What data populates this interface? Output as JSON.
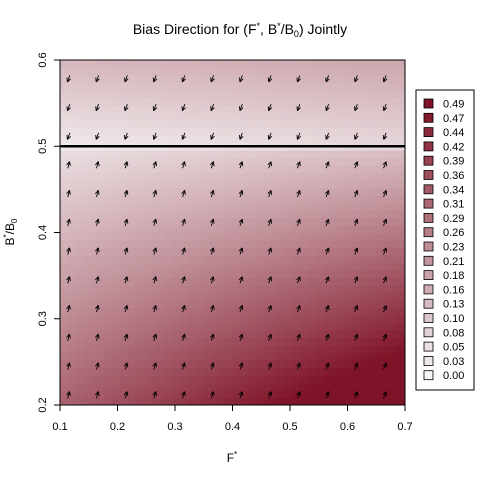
{
  "chart_data": {
    "type": "heatmap",
    "title": {
      "pre": "Bias Direction for (F",
      "sup1": "*",
      "mid": ", B",
      "sup2": "*",
      "slash": "/B",
      "sub": "0",
      "post": ") Jointly"
    },
    "xlabel": {
      "base": "F",
      "sup": "*"
    },
    "ylabel": {
      "base": "B",
      "sup": "*",
      "slash": "/B",
      "sub": "0"
    },
    "xlim": [
      0.1,
      0.7
    ],
    "ylim": [
      0.2,
      0.6
    ],
    "x_ticks": [
      "0.1",
      "0.2",
      "0.3",
      "0.4",
      "0.5",
      "0.6",
      "0.7"
    ],
    "y_ticks": [
      "0.2",
      "0.3",
      "0.4",
      "0.5",
      "0.6"
    ],
    "reference_line_y": 0.5,
    "color_low": "#f7f7f7",
    "color_high": "#7f1327",
    "legend": {
      "placement": "right",
      "levels": [
        "0.49",
        "0.47",
        "0.44",
        "0.42",
        "0.39",
        "0.36",
        "0.34",
        "0.31",
        "0.29",
        "0.26",
        "0.23",
        "0.21",
        "0.18",
        "0.16",
        "0.13",
        "0.10",
        "0.08",
        "0.05",
        "0.03",
        "0.00"
      ]
    },
    "arrow_grid": {
      "cols": 12,
      "rows": 12
    },
    "bias_field": "bias magnitude increases with distance from the B*/B0 = 0.5 line, strongest at low B*/B0 and high F*; arrows point up-right below the line and down-left above it"
  }
}
